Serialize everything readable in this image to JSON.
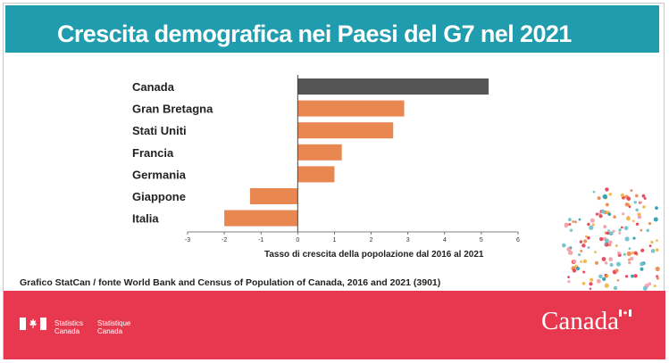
{
  "header": {
    "title": "Crescita demografica nei Paesi del G7 nel 2021"
  },
  "chart_data": {
    "type": "bar",
    "orientation": "horizontal",
    "categories": [
      "Canada",
      "Gran Bretagna",
      "Stati Uniti",
      "Francia",
      "Germania",
      "Giappone",
      "Italia"
    ],
    "values": [
      5.2,
      2.9,
      2.6,
      1.2,
      1.0,
      -1.3,
      -2.0
    ],
    "highlight_index": 0,
    "xlim": [
      -3,
      6
    ],
    "xticks": [
      -3,
      -2,
      -1,
      0,
      1,
      2,
      3,
      4,
      5,
      6
    ],
    "xlabel": "Tasso di crescita della popolazione dal 2016 al 2021",
    "title": "Crescita demografica nei Paesi del G7 nel 2021",
    "grid": false
  },
  "colors": {
    "header": "#1f9cad",
    "bar": "#e8874f",
    "highlight_bar": "#555555",
    "footer": "#e8384f"
  },
  "source": "Grafico StatCan / fonte World Bank and Census of Population of Canada, 2016 and 2021 (3901)",
  "footer": {
    "agency_en_line1": "Statistics",
    "agency_en_line2": "Canada",
    "agency_fr_line1": "Statistique",
    "agency_fr_line2": "Canada",
    "wordmark": "Canada",
    "flag_icon": "canada-flag-icon"
  }
}
